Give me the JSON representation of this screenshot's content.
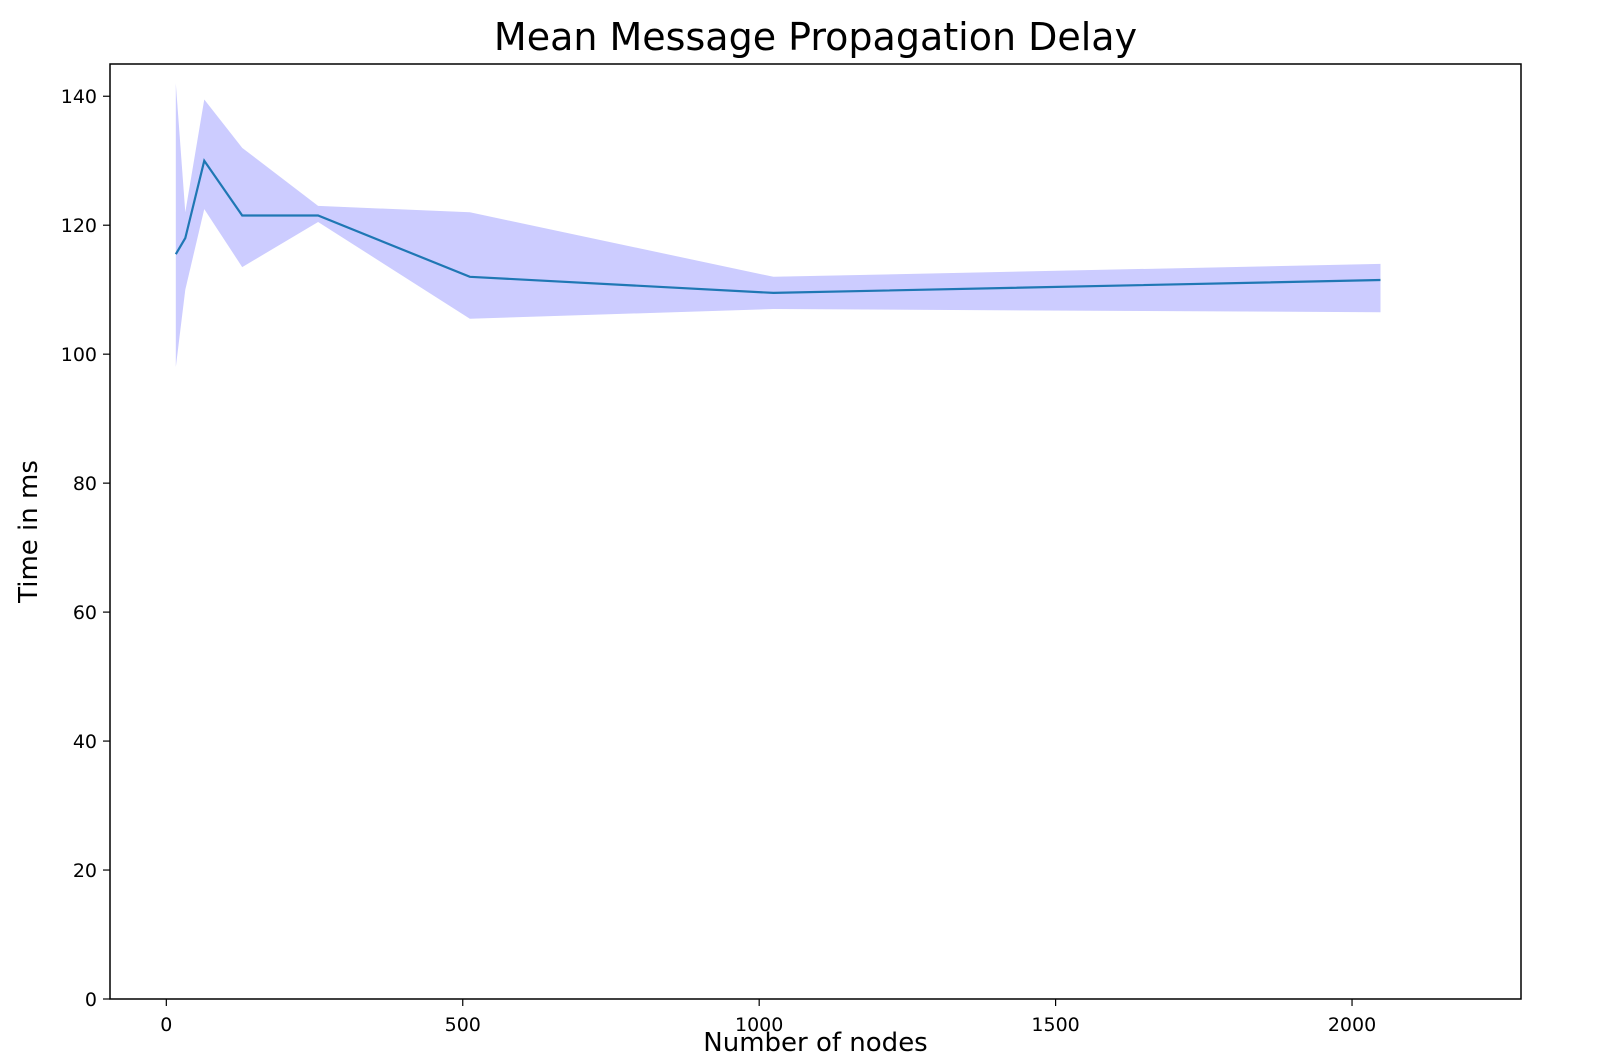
{
  "chart_data": {
    "type": "line",
    "title": "Mean Message Propagation Delay",
    "xlabel": "Number of nodes",
    "ylabel": "Time in ms",
    "xlim": [
      -95,
      2285
    ],
    "ylim": [
      0,
      145
    ],
    "xticks": [
      0,
      500,
      1000,
      1500,
      2000
    ],
    "yticks": [
      0,
      20,
      40,
      60,
      80,
      100,
      120,
      140
    ],
    "grid": false,
    "legend": "none",
    "series": [
      {
        "x": [
          16,
          32,
          64,
          128,
          256,
          512,
          1024,
          2048
        ],
        "y": [
          115.5,
          118.0,
          130.0,
          121.5,
          121.5,
          112.0,
          109.5,
          111.5
        ],
        "lower": [
          98.0,
          110.0,
          122.5,
          113.5,
          120.5,
          105.5,
          107.0,
          106.5
        ],
        "upper": [
          142.0,
          122.0,
          139.5,
          132.0,
          123.0,
          122.0,
          112.0,
          114.0
        ]
      }
    ],
    "colors": {
      "line": "#1f77b4",
      "band": "#ccccff",
      "axes": "#000000",
      "background": "#ffffff"
    }
  }
}
